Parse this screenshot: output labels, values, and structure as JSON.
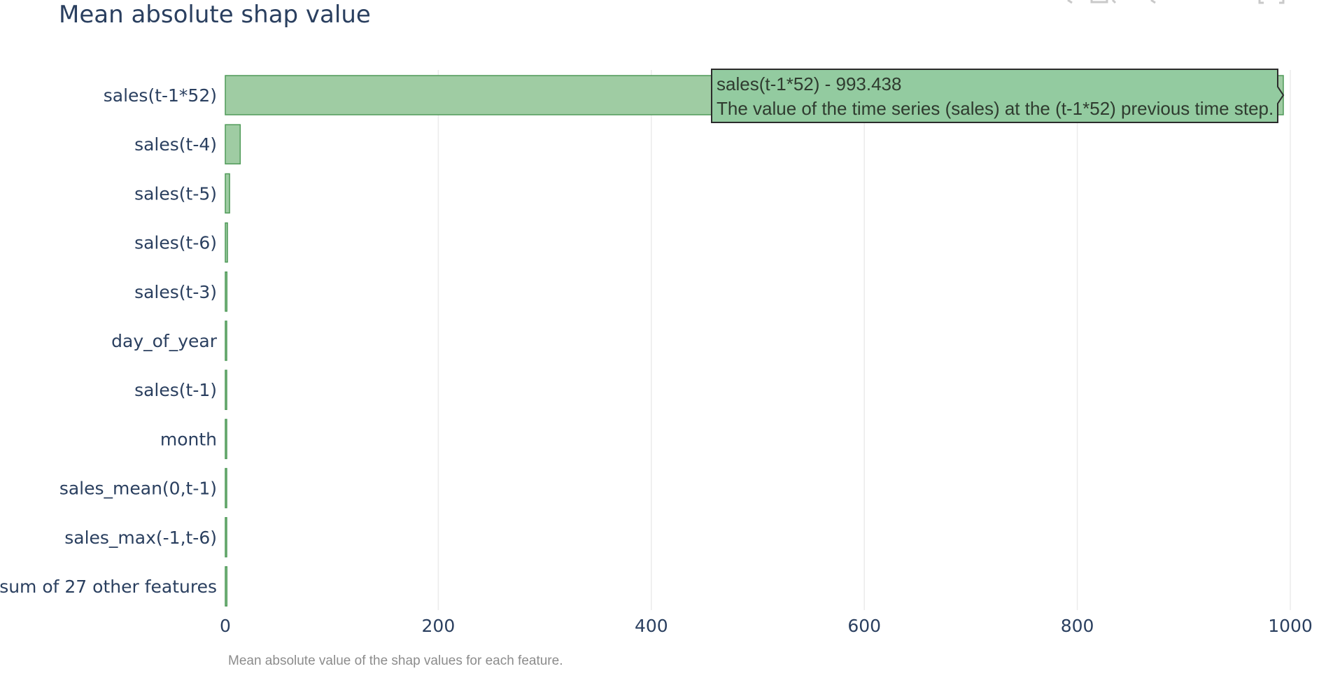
{
  "chart_data": {
    "type": "bar",
    "orientation": "horizontal",
    "title": "Mean absolute shap value",
    "caption": "Mean absolute value of the shap values for each feature.",
    "categories": [
      "sales(t-1*52)",
      "sales(t-4)",
      "sales(t-5)",
      "sales(t-6)",
      "sales(t-3)",
      "day_of_year",
      "sales(t-1)",
      "month",
      "sales_mean(0,t-1)",
      "sales_max(-1,t-6)",
      "sum of 27 other features"
    ],
    "values": [
      993.438,
      14,
      4,
      2,
      1.5,
      1.2,
      1.0,
      0.9,
      0.8,
      0.7,
      1.5
    ],
    "xlim": [
      0,
      1000
    ],
    "xticks": [
      "0",
      "200",
      "400",
      "600",
      "800",
      "1000"
    ],
    "grid": true,
    "colors": {
      "bar_fill": "#9fcca3",
      "bar_stroke": "#4f9a58",
      "tooltip_fill": "#93cba0",
      "grid": "#ebebeb"
    },
    "tooltip": {
      "line1": "sales(t-1*52)  - 993.438",
      "line2": "The value of the time series (sales) at the (t-1*52) previous time step."
    }
  }
}
